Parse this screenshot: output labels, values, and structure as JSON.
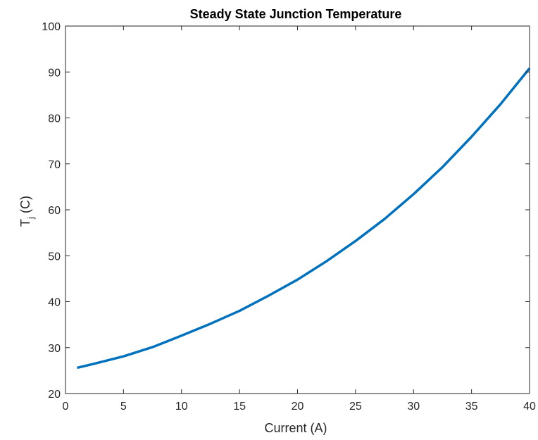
{
  "chart_data": {
    "type": "line",
    "title": "Steady State Junction Temperature",
    "xlabel": "Current (A)",
    "ylabel": {
      "base": "T",
      "subscript": "j",
      "suffix": " (C)"
    },
    "xlim": [
      0,
      40
    ],
    "ylim": [
      20,
      100
    ],
    "xticks": [
      0,
      5,
      10,
      15,
      20,
      25,
      30,
      35,
      40
    ],
    "yticks": [
      20,
      30,
      40,
      50,
      60,
      70,
      80,
      90,
      100
    ],
    "grid": false,
    "line_color": "#0072BD",
    "series": [
      {
        "x": [
          1,
          2.5,
          5,
          7.5,
          10,
          12.5,
          15,
          17.5,
          20,
          22.5,
          25,
          27.5,
          30,
          32.5,
          35,
          37.5,
          40
        ],
        "y": [
          25.6,
          26.5,
          28.1,
          30.1,
          32.6,
          35.2,
          38.0,
          41.3,
          44.8,
          48.8,
          53.2,
          58.0,
          63.4,
          69.3,
          75.9,
          83.0,
          90.8
        ]
      }
    ]
  }
}
